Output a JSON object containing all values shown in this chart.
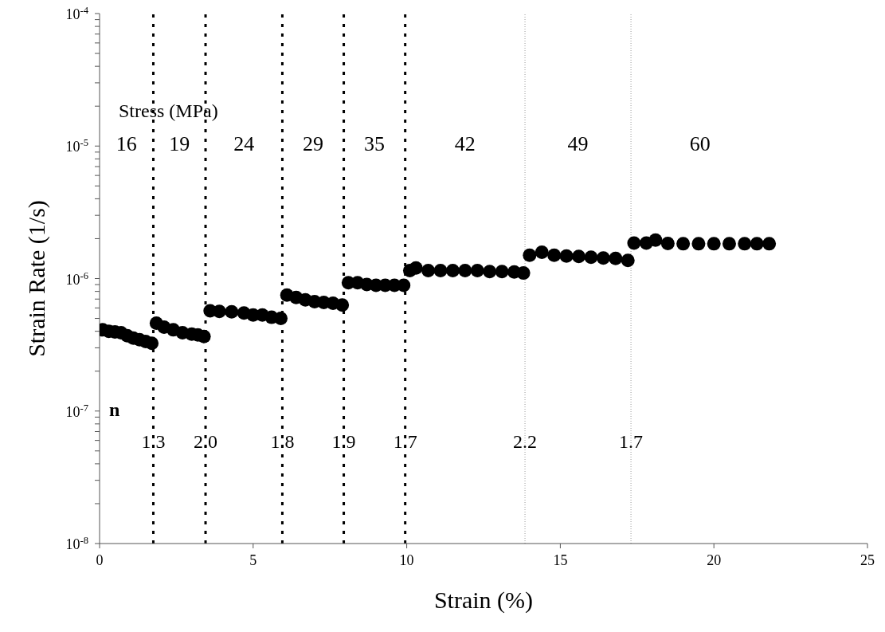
{
  "chart_data": {
    "type": "scatter",
    "xlabel": "Strain (%)",
    "ylabel": "Strain Rate (1/s)",
    "log": "y",
    "marker": "circle",
    "legend": false,
    "grid": false,
    "xlim": [
      0,
      25
    ],
    "xticks": [
      0,
      5,
      10,
      15,
      20,
      25
    ],
    "ylim": [
      1e-08,
      0.0001
    ],
    "yticks": [
      {
        "value": 1e-08,
        "label": "10$^{-8}$"
      },
      {
        "value": 2e-08,
        "label": null
      },
      {
        "value": 3e-08,
        "label": null
      },
      {
        "value": 4e-08,
        "label": null
      },
      {
        "value": 5e-08,
        "label": null
      },
      {
        "value": 6e-08,
        "label": null
      },
      {
        "value": 7e-08,
        "label": null
      },
      {
        "value": 8e-08,
        "label": null
      },
      {
        "value": 9e-08,
        "label": null
      },
      {
        "value": 1e-07,
        "label": "10$^{-7}$"
      },
      {
        "value": 2e-07,
        "label": null
      },
      {
        "value": 3e-07,
        "label": null
      },
      {
        "value": 4e-07,
        "label": null
      },
      {
        "value": 5e-07,
        "label": null
      },
      {
        "value": 6e-07,
        "label": null
      },
      {
        "value": 7e-07,
        "label": null
      },
      {
        "value": 8e-07,
        "label": null
      },
      {
        "value": 9e-07,
        "label": null
      },
      {
        "value": 1e-06,
        "label": "10$^{-6}$"
      },
      {
        "value": 2e-06,
        "label": null
      },
      {
        "value": 3e-06,
        "label": null
      },
      {
        "value": 4e-06,
        "label": null
      },
      {
        "value": 5e-06,
        "label": null
      },
      {
        "value": 6e-06,
        "label": null
      },
      {
        "value": 7e-06,
        "label": null
      },
      {
        "value": 8e-06,
        "label": null
      },
      {
        "value": 9e-06,
        "label": null
      },
      {
        "value": 1e-05,
        "label": "10$^{-5}$"
      },
      {
        "value": 2e-05,
        "label": null
      },
      {
        "value": 3e-05,
        "label": null
      },
      {
        "value": 4e-05,
        "label": null
      },
      {
        "value": 5e-05,
        "label": null
      },
      {
        "value": 6e-05,
        "label": null
      },
      {
        "value": 7e-05,
        "label": null
      },
      {
        "value": 8e-05,
        "label": null
      },
      {
        "value": 9e-05,
        "label": null
      },
      {
        "value": 0.0001,
        "label": "10$^{-4}$"
      }
    ],
    "series": [
      {
        "color": "#000000",
        "x": [
          0.1,
          0.3,
          0.5,
          0.7,
          0.9,
          1.1,
          1.3,
          1.5,
          1.7,
          1.85,
          2.1,
          2.4,
          2.7,
          3.0,
          3.2,
          3.4,
          3.6,
          3.9,
          4.3,
          4.7,
          5.0,
          5.3,
          5.6,
          5.9,
          6.1,
          6.4,
          6.7,
          7.0,
          7.3,
          7.6,
          7.9,
          8.1,
          8.4,
          8.7,
          9.0,
          9.3,
          9.6,
          9.9,
          10.1,
          10.3,
          10.7,
          11.1,
          11.5,
          11.9,
          12.3,
          12.7,
          13.1,
          13.5,
          13.8,
          14.0,
          14.4,
          14.8,
          15.2,
          15.6,
          16.0,
          16.4,
          16.8,
          17.2,
          17.4,
          17.8,
          18.1,
          18.5,
          19.0,
          19.5,
          20.0,
          20.5,
          21.0,
          21.4,
          21.8
        ],
        "values": [
          4.1e-07,
          4e-07,
          3.95e-07,
          3.9e-07,
          3.7e-07,
          3.55e-07,
          3.45e-07,
          3.35e-07,
          3.25e-07,
          4.6e-07,
          4.3e-07,
          4.1e-07,
          3.9e-07,
          3.8e-07,
          3.75e-07,
          3.65e-07,
          5.7e-07,
          5.65e-07,
          5.6e-07,
          5.5e-07,
          5.3e-07,
          5.3e-07,
          5.1e-07,
          5e-07,
          7.5e-07,
          7.2e-07,
          6.9e-07,
          6.7e-07,
          6.6e-07,
          6.5e-07,
          6.3e-07,
          9.3e-07,
          9.3e-07,
          9e-07,
          8.9e-07,
          8.9e-07,
          8.9e-07,
          8.9e-07,
          1.15e-06,
          1.2e-06,
          1.15e-06,
          1.15e-06,
          1.15e-06,
          1.15e-06,
          1.15e-06,
          1.13e-06,
          1.13e-06,
          1.12e-06,
          1.1e-06,
          1.5e-06,
          1.58e-06,
          1.5e-06,
          1.48e-06,
          1.47e-06,
          1.45e-06,
          1.43e-06,
          1.42e-06,
          1.37e-06,
          1.85e-06,
          1.85e-06,
          1.95e-06,
          1.84e-06,
          1.83e-06,
          1.83e-06,
          1.83e-06,
          1.83e-06,
          1.83e-06,
          1.83e-06,
          1.83e-06
        ]
      }
    ],
    "ref_lines": [
      {
        "axis": "x",
        "value": 1.75,
        "color": "#000000",
        "line_style": "dashed"
      },
      {
        "axis": "x",
        "value": 3.45,
        "color": "#000000",
        "line_style": "dashed"
      },
      {
        "axis": "x",
        "value": 5.95,
        "color": "#000000",
        "line_style": "dashed"
      },
      {
        "axis": "x",
        "value": 7.95,
        "color": "#000000",
        "line_style": "dashed"
      },
      {
        "axis": "x",
        "value": 9.95,
        "color": "#000000",
        "line_style": "dashed"
      },
      {
        "axis": "x",
        "value": 13.85,
        "color": "#999999",
        "line_style": "dotted"
      },
      {
        "axis": "x",
        "value": 17.3,
        "color": "#999999",
        "line_style": "dotted"
      }
    ],
    "annotations": [
      "Stress (MPa)",
      "16",
      "19",
      "24",
      "29",
      "35",
      "42",
      "49",
      "60",
      "n",
      "1.3",
      "2.0",
      "1.8",
      "1.9",
      "1.7",
      "2.2",
      "1.7"
    ]
  }
}
